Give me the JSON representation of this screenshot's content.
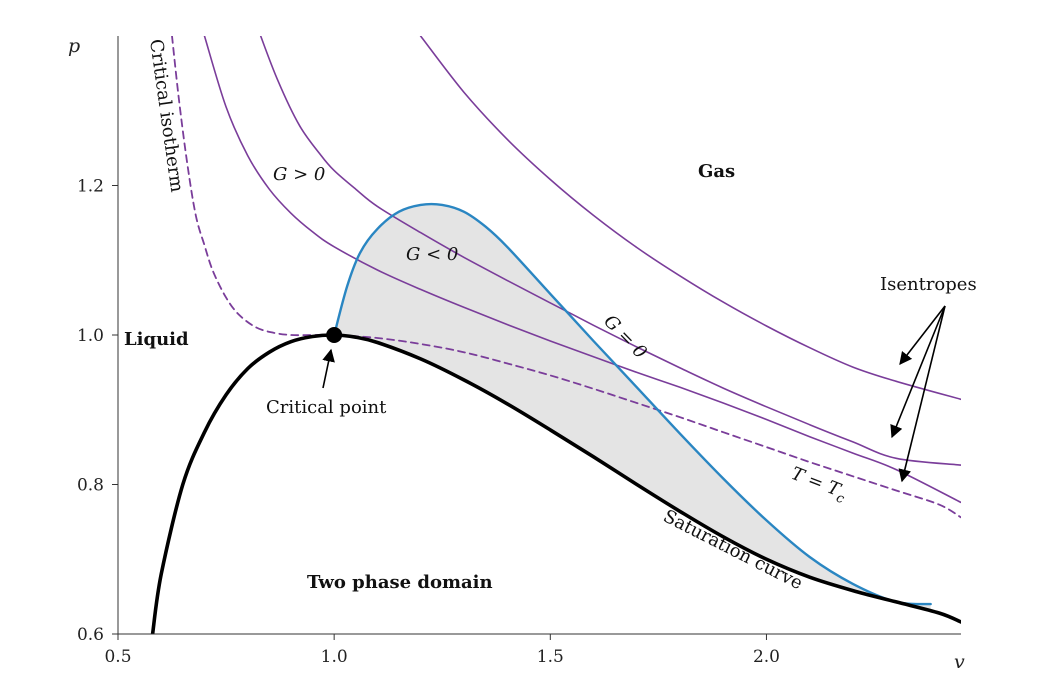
{
  "chart_data": {
    "type": "line",
    "title": "",
    "xlabel": "v",
    "ylabel": "p",
    "xlim": [
      0.5,
      2.45
    ],
    "ylim": [
      0.6,
      1.4
    ],
    "x_ticks": [
      0.5,
      1.0,
      1.5,
      2.0
    ],
    "x_tick_labels": [
      "0.5",
      "1.0",
      "1.5",
      "2.0"
    ],
    "y_ticks": [
      0.6,
      0.8,
      1.0,
      1.2
    ],
    "y_tick_labels": [
      "0.6",
      "0.8",
      "1.0",
      "1.2"
    ],
    "grid": false,
    "colors": {
      "isentrope": "#7a3d9a",
      "critical_isotherm": "#7a3d9a",
      "g_zero": "#2a86c2",
      "saturation": "#000000",
      "shade": "#e4e4e4"
    },
    "series": [
      {
        "key": "isentrope_1",
        "style": "solid",
        "x": [
          0.7,
          0.75,
          0.8,
          0.85,
          0.9,
          0.95,
          1.0,
          1.1,
          1.2,
          1.3,
          1.4,
          1.5,
          1.6,
          1.7,
          1.8,
          1.9,
          2.0,
          2.1,
          2.2,
          2.3,
          2.45
        ],
        "y": [
          1.4,
          1.305,
          1.24,
          1.195,
          1.163,
          1.138,
          1.118,
          1.087,
          1.061,
          1.037,
          1.014,
          0.992,
          0.971,
          0.95,
          0.93,
          0.909,
          0.887,
          0.864,
          0.842,
          0.82,
          0.776
        ]
      },
      {
        "key": "isentrope_2",
        "style": "solid",
        "x": [
          0.83,
          0.87,
          0.92,
          0.97,
          1.0,
          1.05,
          1.1,
          1.2,
          1.3,
          1.4,
          1.5,
          1.6,
          1.7,
          1.8,
          1.9,
          2.0,
          2.1,
          2.2,
          2.3,
          2.45
        ],
        "y": [
          1.4,
          1.34,
          1.28,
          1.24,
          1.22,
          1.195,
          1.172,
          1.137,
          1.104,
          1.073,
          1.043,
          1.013,
          0.984,
          0.956,
          0.929,
          0.904,
          0.88,
          0.857,
          0.835,
          0.826
        ]
      },
      {
        "key": "isentrope_3",
        "style": "solid",
        "x": [
          1.2,
          1.3,
          1.4,
          1.5,
          1.6,
          1.7,
          1.8,
          1.9,
          2.0,
          2.1,
          2.2,
          2.3,
          2.45
        ],
        "y": [
          1.4,
          1.325,
          1.262,
          1.208,
          1.16,
          1.117,
          1.079,
          1.044,
          1.012,
          0.983,
          0.957,
          0.938,
          0.914
        ]
      },
      {
        "key": "critical_isotherm",
        "name": "T = T_c",
        "style": "dashed",
        "x": [
          0.625,
          0.64,
          0.66,
          0.68,
          0.7,
          0.72,
          0.75,
          0.78,
          0.82,
          0.86,
          0.9,
          0.95,
          1.0,
          1.1,
          1.2,
          1.3,
          1.4,
          1.5,
          1.6,
          1.7,
          1.8,
          1.9,
          2.0,
          2.1,
          2.2,
          2.3,
          2.4,
          2.45
        ],
        "y": [
          1.4,
          1.32,
          1.23,
          1.16,
          1.12,
          1.085,
          1.05,
          1.027,
          1.01,
          1.003,
          1.0,
          1.0,
          1.0,
          0.996,
          0.988,
          0.977,
          0.962,
          0.946,
          0.928,
          0.909,
          0.89,
          0.87,
          0.85,
          0.83,
          0.811,
          0.792,
          0.773,
          0.756
        ]
      },
      {
        "key": "g_zero",
        "name": "G = 0",
        "style": "solid",
        "x": [
          1.0,
          1.03,
          1.06,
          1.1,
          1.15,
          1.2,
          1.25,
          1.3,
          1.35,
          1.4,
          1.5,
          1.6,
          1.7,
          1.8,
          1.9,
          2.0,
          2.1,
          2.2,
          2.3,
          2.38
        ],
        "y": [
          1.0,
          1.065,
          1.11,
          1.142,
          1.165,
          1.174,
          1.174,
          1.165,
          1.145,
          1.118,
          1.055,
          0.992,
          0.93,
          0.868,
          0.808,
          0.752,
          0.703,
          0.667,
          0.643,
          0.64
        ]
      },
      {
        "key": "saturation_curve",
        "name": "Saturation curve",
        "style": "solid",
        "x": [
          0.58,
          0.6,
          0.65,
          0.7,
          0.75,
          0.8,
          0.85,
          0.9,
          0.95,
          1.0,
          1.05,
          1.1,
          1.2,
          1.3,
          1.4,
          1.5,
          1.6,
          1.7,
          1.8,
          1.9,
          2.0,
          2.1,
          2.2,
          2.3,
          2.4,
          2.45
        ],
        "y": [
          0.6,
          0.68,
          0.8,
          0.87,
          0.92,
          0.955,
          0.977,
          0.991,
          0.998,
          1.0,
          0.997,
          0.99,
          0.968,
          0.94,
          0.908,
          0.873,
          0.837,
          0.8,
          0.764,
          0.73,
          0.7,
          0.676,
          0.658,
          0.643,
          0.628,
          0.616
        ]
      }
    ],
    "critical_point": {
      "x": 1.0,
      "y": 1.0
    },
    "annotations": {
      "critical_isotherm_label": "Critical isotherm",
      "g_positive": "G > 0",
      "g_negative": "G < 0",
      "g_zero": "G = 0",
      "gas": "Gas",
      "liquid": "Liquid",
      "isentropes": "Isentropes",
      "critical_point": "Critical point",
      "t_tc": "T = T",
      "t_tc_sub": "c",
      "saturation": "Saturation curve",
      "two_phase": "Two phase domain"
    }
  }
}
